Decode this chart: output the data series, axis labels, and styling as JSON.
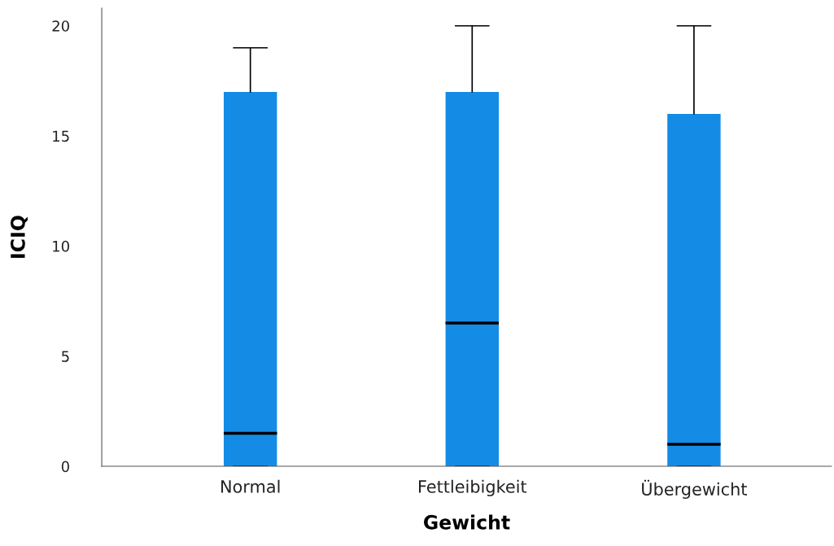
{
  "chart_data": {
    "type": "box",
    "xlabel": "Gewicht",
    "ylabel": "ICIQ",
    "categories": [
      "Normal",
      "Fettleibigkeit",
      "Übergewicht"
    ],
    "color": "#148ce6",
    "boxes": [
      {
        "low": 0,
        "q1": 0,
        "median": 1.5,
        "q3": 17,
        "high": 19
      },
      {
        "low": 0,
        "q1": 0,
        "median": 6.5,
        "q3": 17,
        "high": 20
      },
      {
        "low": 0,
        "q1": 0,
        "median": 1,
        "q3": 16,
        "high": 20
      }
    ],
    "ylim": [
      0,
      20.8
    ],
    "yticks": [
      0,
      5,
      10,
      15,
      20
    ]
  }
}
